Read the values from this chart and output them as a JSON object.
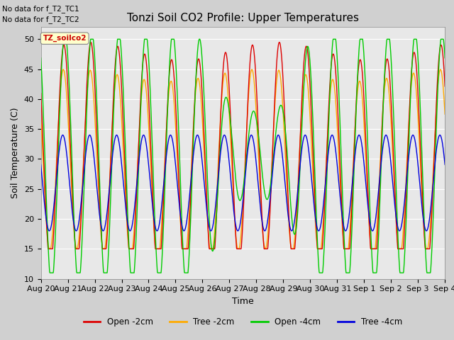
{
  "title": "Tonzi Soil CO2 Profile: Upper Temperatures",
  "ylabel": "Soil Temperature (C)",
  "xlabel": "Time",
  "ylim": [
    10,
    52
  ],
  "note_lines": [
    "No data for f_T2_TC1",
    "No data for f_T2_TC2"
  ],
  "dataset_label": "TZ_soilco2",
  "tick_labels": [
    "Aug 20",
    "Aug 21",
    "Aug 22",
    "Aug 23",
    "Aug 24",
    "Aug 25",
    "Aug 26",
    "Aug 27",
    "Aug 28",
    "Aug 29",
    "Aug 30",
    "Aug 31",
    "Sep 1",
    "Sep 2",
    "Sep 3",
    "Sep 4"
  ],
  "legend_entries": [
    {
      "label": "Open -2cm",
      "color": "#dd0000"
    },
    {
      "label": "Tree -2cm",
      "color": "#ffaa00"
    },
    {
      "label": "Open -4cm",
      "color": "#00cc00"
    },
    {
      "label": "Tree -4cm",
      "color": "#0000dd"
    }
  ],
  "plot_bg": "#e8e8e8",
  "title_fontsize": 11,
  "axis_fontsize": 9,
  "tick_fontsize": 8
}
